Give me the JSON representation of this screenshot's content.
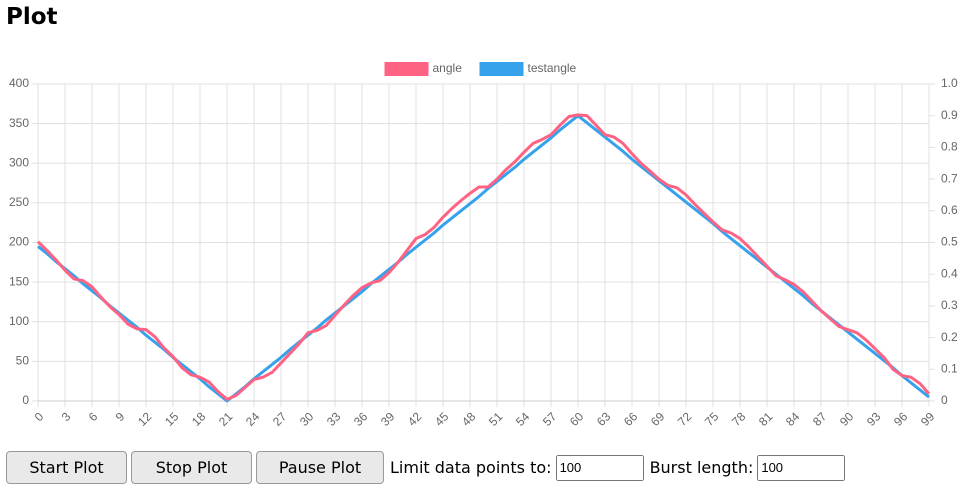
{
  "header": {
    "title": "Plot"
  },
  "chart_data": {
    "type": "line",
    "x": [
      0,
      1,
      2,
      3,
      4,
      5,
      6,
      7,
      8,
      9,
      10,
      11,
      12,
      13,
      14,
      15,
      16,
      17,
      18,
      19,
      20,
      21,
      22,
      23,
      24,
      25,
      26,
      27,
      28,
      29,
      30,
      31,
      32,
      33,
      34,
      35,
      36,
      37,
      38,
      39,
      40,
      41,
      42,
      43,
      44,
      45,
      46,
      47,
      48,
      49,
      50,
      51,
      52,
      53,
      54,
      55,
      56,
      57,
      58,
      59,
      60,
      61,
      62,
      63,
      64,
      65,
      66,
      67,
      68,
      69,
      70,
      71,
      72,
      73,
      74,
      75,
      76,
      77,
      78,
      79,
      80,
      81,
      82,
      83,
      84,
      85,
      86,
      87,
      88,
      89,
      90,
      91,
      92,
      93,
      94,
      95,
      96,
      97,
      98,
      99
    ],
    "series": [
      {
        "name": "angle",
        "color": "#ff6384",
        "values": [
          201,
          190,
          178,
          165,
          154,
          152,
          144,
          131,
          119,
          109,
          97,
          91,
          90,
          81,
          67,
          56,
          42,
          33,
          30,
          24,
          12,
          2,
          7,
          17,
          27,
          30,
          36,
          48,
          60,
          72,
          86,
          89,
          95,
          108,
          121,
          133,
          143,
          149,
          152,
          162,
          175,
          190,
          205,
          210,
          219,
          232,
          243,
          253,
          262,
          270,
          270,
          280,
          292,
          302,
          314,
          325,
          330,
          336,
          348,
          359,
          361,
          360,
          348,
          336,
          333,
          325,
          312,
          300,
          290,
          280,
          272,
          269,
          260,
          248,
          237,
          226,
          216,
          212,
          205,
          194,
          182,
          170,
          158,
          153,
          147,
          138,
          126,
          114,
          104,
          94,
          90,
          86,
          77,
          66,
          55,
          40,
          32,
          30,
          22,
          9
        ]
      },
      {
        "name": "testangle",
        "color": "#36a2eb",
        "values": [
          195,
          186,
          176,
          167,
          158,
          148,
          139,
          130,
          120,
          111,
          102,
          93,
          83,
          74,
          65,
          55,
          46,
          37,
          28,
          18,
          9,
          0,
          9,
          18,
          28,
          37,
          46,
          55,
          65,
          74,
          83,
          92,
          102,
          111,
          120,
          129,
          138,
          148,
          157,
          166,
          175,
          185,
          194,
          203,
          212,
          222,
          231,
          240,
          249,
          258,
          268,
          277,
          286,
          295,
          305,
          314,
          323,
          332,
          342,
          351,
          360,
          351,
          342,
          333,
          324,
          315,
          305,
          296,
          287,
          278,
          269,
          260,
          251,
          242,
          233,
          224,
          214,
          205,
          196,
          187,
          178,
          169,
          160,
          151,
          142,
          133,
          123,
          114,
          105,
          96,
          87,
          78,
          69,
          60,
          51,
          42,
          32,
          23,
          14,
          5
        ]
      }
    ],
    "xlim": [
      0,
      99
    ],
    "xticks": [
      0,
      3,
      6,
      9,
      12,
      15,
      18,
      21,
      24,
      27,
      30,
      33,
      36,
      39,
      42,
      45,
      48,
      51,
      54,
      57,
      60,
      63,
      66,
      69,
      72,
      75,
      78,
      81,
      84,
      87,
      90,
      93,
      96,
      99
    ],
    "ylim": [
      0,
      400
    ],
    "yticks": [
      0,
      50,
      100,
      150,
      200,
      250,
      300,
      350,
      400
    ],
    "y2lim": [
      0,
      1
    ],
    "y2ticks": [
      0,
      0.1,
      0.2,
      0.3,
      0.4,
      0.5,
      0.6,
      0.7,
      0.8,
      0.9,
      {
        "value": 1,
        "label": "1.0"
      }
    ],
    "grid": true,
    "legend": "top"
  },
  "controls": {
    "buttons": [
      "Start Plot",
      "Stop Plot",
      "Pause Plot"
    ],
    "limit_label": "Limit data points to:",
    "limit_value": 100,
    "burst_label": "Burst length:",
    "burst_value": 100
  }
}
